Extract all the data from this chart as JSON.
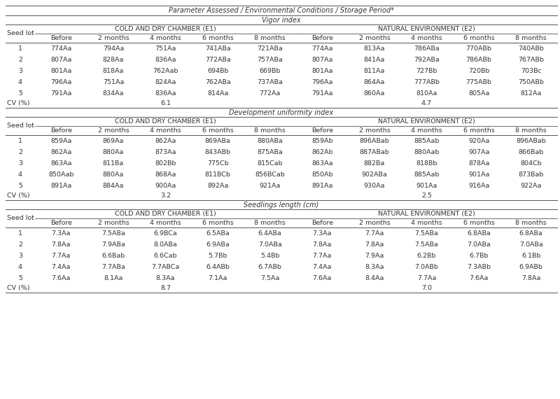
{
  "header_row": "Parameter Assessed / Environmental Conditions / Storage Period*",
  "sections": [
    {
      "name": "Vigor index",
      "e1_label": "COLD AND DRY CHAMBER (E1)",
      "e2_label": "NATURAL ENVIRONMENT (E2)",
      "col_headers": [
        "Before",
        "2 months",
        "4 months",
        "6 months",
        "8 months"
      ],
      "rows": [
        [
          "1",
          "774Aa",
          "794Aa",
          "751Aa",
          "741ABa",
          "721ABa",
          "774Aa",
          "813Aa",
          "786ABa",
          "770ABb",
          "740ABb"
        ],
        [
          "2",
          "807Aa",
          "828Aa",
          "836Aa",
          "772ABa",
          "757ABa",
          "807Aa",
          "841Aa",
          "792ABa",
          "786ABb",
          "767ABb"
        ],
        [
          "3",
          "801Aa",
          "818Aa",
          "762Aab",
          "694Bb",
          "669Bb",
          "801Aa",
          "811Aa",
          "727Bb",
          "720Bb",
          "703Bc"
        ],
        [
          "4",
          "796Aa",
          "751Aa",
          "824Aa",
          "762ABa",
          "737ABa",
          "796Aa",
          "864Aa",
          "777ABb",
          "775ABb",
          "750ABb"
        ],
        [
          "5",
          "791Aa",
          "834Aa",
          "836Aa",
          "814Aa",
          "772Aa",
          "791Aa",
          "860Aa",
          "810Aa",
          "805Aa",
          "812Aa"
        ]
      ],
      "cv": [
        "CV (%)",
        "6.1",
        "4.7"
      ]
    },
    {
      "name": "Development uniformity index",
      "e1_label": "COLD AND DRY CHAMBER (E1)",
      "e2_label": "NATURAL ENVIRONMENT (E2)",
      "col_headers": [
        "Before",
        "2 months",
        "4 months",
        "6 months",
        "8 months"
      ],
      "rows": [
        [
          "1",
          "859Aa",
          "869Aa",
          "862Aa",
          "869ABa",
          "880ABa",
          "859Ab",
          "896ABab",
          "885Aab",
          "920Aa",
          "896ABab"
        ],
        [
          "2",
          "862Aa",
          "880Aa",
          "873Aa",
          "843ABb",
          "875ABa",
          "862Ab",
          "887ABab",
          "880Aab",
          "907Aa",
          "866Bab"
        ],
        [
          "3",
          "863Aa",
          "811Ba",
          "802Bb",
          "775Cb",
          "815Cab",
          "863Aa",
          "882Ba",
          "818Bb",
          "878Aa",
          "804Cb"
        ],
        [
          "4",
          "850Aab",
          "880Aa",
          "868Aa",
          "811BCb",
          "856BCab",
          "850Ab",
          "902ABa",
          "885Aab",
          "901Aa",
          "873Bab"
        ],
        [
          "5",
          "891Aa",
          "884Aa",
          "900Aa",
          "892Aa",
          "921Aa",
          "891Aa",
          "930Aa",
          "901Aa",
          "916Aa",
          "922Aa"
        ]
      ],
      "cv": [
        "CV (%)",
        "3.2",
        "2.5"
      ]
    },
    {
      "name": "Seedlings length (cm)",
      "e1_label": "COLD AND DRY CHAMBER (E1)",
      "e2_label": "NATURAL ENVIRONMENT (E2)",
      "col_headers": [
        "Before",
        "2 months",
        "4 months",
        "6 months",
        "8 months"
      ],
      "rows": [
        [
          "1",
          "7.3Aa",
          "7.5ABa",
          "6.9BCa",
          "6.5ABa",
          "6.4ABa",
          "7.3Aa",
          "7.7Aa",
          "7.5ABa",
          "6.8ABa",
          "6.8ABa"
        ],
        [
          "2",
          "7.8Aa",
          "7.9ABa",
          "8.0ABa",
          "6.9ABa",
          "7.0ABa",
          "7.8Aa",
          "7.8Aa",
          "7.5ABa",
          "7.0ABa",
          "7.0ABa"
        ],
        [
          "3",
          "7.7Aa",
          "6.6Bab",
          "6.6Cab",
          "5.7Bb",
          "5.4Bb",
          "7.7Aa",
          "7.9Aa",
          "6.2Bb",
          "6.7Bb",
          "6.1Bb"
        ],
        [
          "4",
          "7.4Aa",
          "7.7ABa",
          "7.7ABCa",
          "6.4ABb",
          "6.7ABb",
          "7.4Aa",
          "8.3Aa",
          "7.0ABb",
          "7.3ABb",
          "6.9ABb"
        ],
        [
          "5",
          "7.6Aa",
          "8.1Aa",
          "8.3Aa",
          "7.1Aa",
          "7.5Aa",
          "7.6Aa",
          "8.4Aa",
          "7.7Aa",
          "7.6Aa",
          "7.8Aa"
        ]
      ],
      "cv": [
        "CV (%)",
        "8.7",
        "7.0"
      ]
    }
  ],
  "bg_color": "#ffffff",
  "text_color": "#333333",
  "line_color": "#555555",
  "font_size": 6.8,
  "header_font_size": 7.0
}
